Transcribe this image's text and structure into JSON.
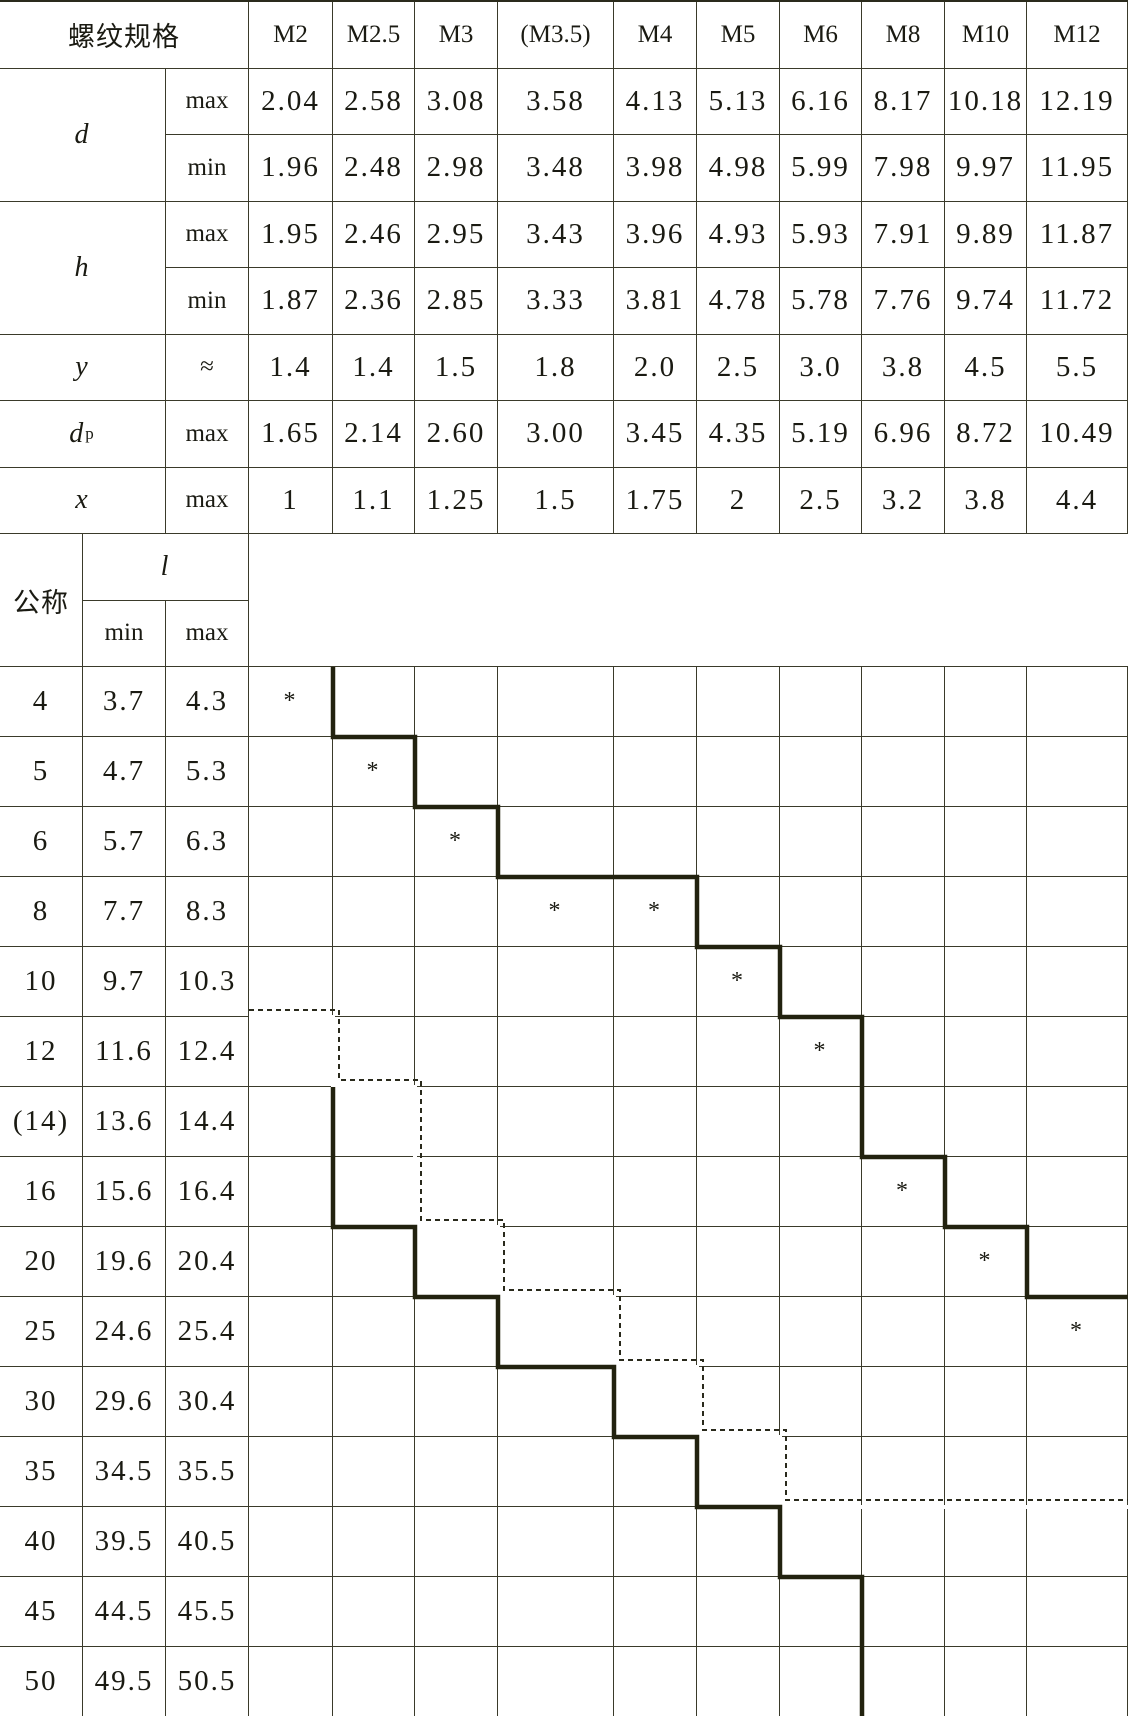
{
  "table": {
    "header_label": "螺纹规格",
    "sizes": [
      "M2",
      "M2.5",
      "M3",
      "(M3.5)",
      "M4",
      "M5",
      "M6",
      "M8",
      "M10",
      "M12"
    ],
    "params": [
      {
        "symbol": "d",
        "sub": "",
        "rows": [
          {
            "q": "max",
            "values": [
              "2.04",
              "2.58",
              "3.08",
              "3.58",
              "4.13",
              "5.13",
              "6.16",
              "8.17",
              "10.18",
              "12.19"
            ]
          },
          {
            "q": "min",
            "values": [
              "1.96",
              "2.48",
              "2.98",
              "3.48",
              "3.98",
              "4.98",
              "5.99",
              "7.98",
              "9.97",
              "11.95"
            ]
          }
        ]
      },
      {
        "symbol": "h",
        "sub": "",
        "rows": [
          {
            "q": "max",
            "values": [
              "1.95",
              "2.46",
              "2.95",
              "3.43",
              "3.96",
              "4.93",
              "5.93",
              "7.91",
              "9.89",
              "11.87"
            ]
          },
          {
            "q": "min",
            "values": [
              "1.87",
              "2.36",
              "2.85",
              "3.33",
              "3.81",
              "4.78",
              "5.78",
              "7.76",
              "9.74",
              "11.72"
            ]
          }
        ]
      },
      {
        "symbol": "y",
        "sub": "",
        "rows": [
          {
            "q": "≈",
            "values": [
              "1.4",
              "1.4",
              "1.5",
              "1.8",
              "2.0",
              "2.5",
              "3.0",
              "3.8",
              "4.5",
              "5.5"
            ]
          }
        ]
      },
      {
        "symbol": "d",
        "sub": "p",
        "rows": [
          {
            "q": "max",
            "values": [
              "1.65",
              "2.14",
              "2.60",
              "3.00",
              "3.45",
              "4.35",
              "5.19",
              "6.96",
              "8.72",
              "10.49"
            ]
          }
        ]
      },
      {
        "symbol": "x",
        "sub": "",
        "rows": [
          {
            "q": "max",
            "values": [
              "1",
              "1.1",
              "1.25",
              "1.5",
              "1.75",
              "2",
              "2.5",
              "3.2",
              "3.8",
              "4.4"
            ]
          }
        ]
      }
    ],
    "length_header": {
      "nominal": "公称",
      "symbol": "l",
      "min": "min",
      "max": "max"
    },
    "mark_symbol": "*",
    "lengths": [
      {
        "nominal": "4",
        "min": "3.7",
        "max": "4.3",
        "marks": [
          "M2"
        ]
      },
      {
        "nominal": "5",
        "min": "4.7",
        "max": "5.3",
        "marks": [
          "M2.5"
        ]
      },
      {
        "nominal": "6",
        "min": "5.7",
        "max": "6.3",
        "marks": [
          "M3"
        ]
      },
      {
        "nominal": "8",
        "min": "7.7",
        "max": "8.3",
        "marks": [
          "(M3.5)",
          "M4"
        ]
      },
      {
        "nominal": "10",
        "min": "9.7",
        "max": "10.3",
        "marks": [
          "M5"
        ]
      },
      {
        "nominal": "12",
        "min": "11.6",
        "max": "12.4",
        "marks": [
          "M6"
        ]
      },
      {
        "nominal": "(14)",
        "min": "13.6",
        "max": "14.4",
        "marks": []
      },
      {
        "nominal": "16",
        "min": "15.6",
        "max": "16.4",
        "marks": [
          "M8"
        ]
      },
      {
        "nominal": "20",
        "min": "19.6",
        "max": "20.4",
        "marks": [
          "M10"
        ]
      },
      {
        "nominal": "25",
        "min": "24.6",
        "max": "25.4",
        "marks": [
          "M12"
        ]
      },
      {
        "nominal": "30",
        "min": "29.6",
        "max": "30.4",
        "marks": []
      },
      {
        "nominal": "35",
        "min": "34.5",
        "max": "35.5",
        "marks": []
      },
      {
        "nominal": "40",
        "min": "39.5",
        "max": "40.5",
        "marks": []
      },
      {
        "nominal": "45",
        "min": "44.5",
        "max": "45.5",
        "marks": []
      },
      {
        "nominal": "50",
        "min": "49.5",
        "max": "50.5",
        "marks": []
      }
    ]
  }
}
